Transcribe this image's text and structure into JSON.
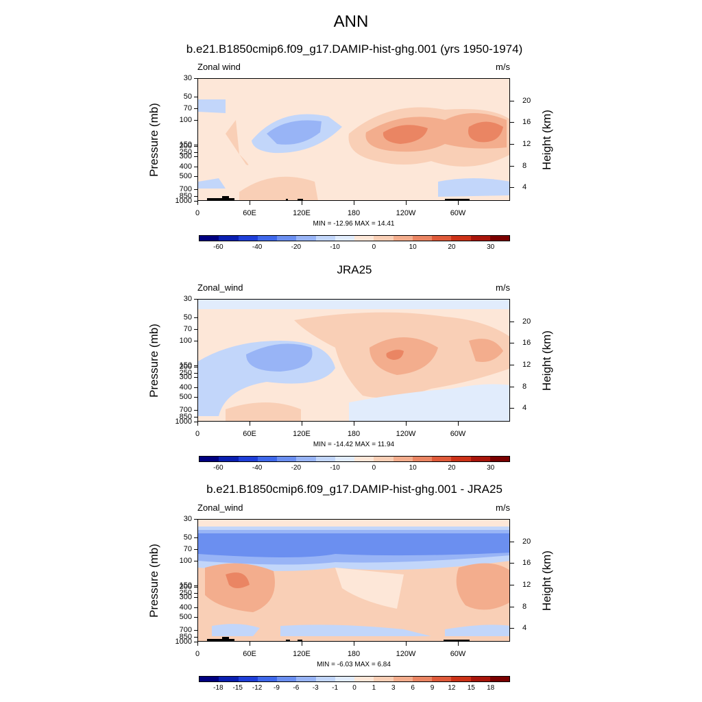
{
  "figure_title": "ANN",
  "panels": [
    {
      "title": "b.e21.B1850cmip6.f09_g17.DAMIP-hist-ghg.001 (yrs 1950-1974)",
      "variable": "Zonal wind",
      "units": "m/s",
      "stats": "MIN = -12.96  MAX =  14.41",
      "scale": "full"
    },
    {
      "title": "JRA25",
      "variable": "Zonal_wind",
      "units": "m/s",
      "stats": "MIN = -14.42  MAX =  11.94",
      "scale": "full"
    },
    {
      "title": "b.e21.B1850cmip6.f09_g17.DAMIP-hist-ghg.001 - JRA25",
      "variable": "Zonal_wind",
      "units": "m/s",
      "stats": "MIN = -6.03  MAX =  6.84",
      "scale": "diff"
    }
  ],
  "axes": {
    "ylabel": "Pressure (mb)",
    "y2label": "Height (km)",
    "pressure_ticks": [
      "30",
      "50",
      "70",
      "100",
      "150",
      "200",
      "250",
      "300",
      "400",
      "500",
      "700",
      "850",
      "1000"
    ],
    "height_ticks": [
      "20",
      "16",
      "12",
      "8",
      "4"
    ],
    "x_ticks": [
      "0",
      "60E",
      "120E",
      "180",
      "120W",
      "60W"
    ]
  },
  "colorbars": {
    "full_labels": [
      "-60",
      "-40",
      "-20",
      "-10",
      "0",
      "10",
      "20",
      "30"
    ],
    "diff_labels": [
      "-18",
      "-15",
      "-12",
      "-9",
      "-6",
      "-3",
      "-1",
      "0",
      "1",
      "3",
      "6",
      "9",
      "12",
      "15",
      "18"
    ],
    "colors": [
      "#00007f",
      "#0a1fb0",
      "#1f3fd8",
      "#3f68ea",
      "#6b8ff0",
      "#98b4f6",
      "#c2d6fa",
      "#e1ecfc",
      "#fde7d8",
      "#f9cfb6",
      "#f3ad8d",
      "#ea8563",
      "#df5a3a",
      "#cc3218",
      "#a8150b",
      "#7a0000"
    ]
  },
  "chart_data": [
    {
      "type": "heatmap",
      "title": "b.e21.B1850cmip6.f09_g17.DAMIP-hist-ghg.001 (yrs 1950-1974)",
      "xlabel": "",
      "ylabel": "Pressure (mb)",
      "y2label": "Height (km)",
      "units": "m/s",
      "x_range": [
        0,
        360
      ],
      "y_range_mb": [
        30,
        1000
      ],
      "min": -12.96,
      "max": 14.41,
      "features": [
        {
          "lon": 85,
          "p": 150,
          "value": -7,
          "desc": "easterly minimum"
        },
        {
          "lon": 212,
          "p": 150,
          "value": 14,
          "desc": "westerly jet core"
        },
        {
          "lon": 315,
          "p": 150,
          "value": 13,
          "desc": "westerly jet core"
        }
      ]
    },
    {
      "type": "heatmap",
      "title": "JRA25",
      "ylabel": "Pressure (mb)",
      "y2label": "Height (km)",
      "units": "m/s",
      "x_range": [
        0,
        360
      ],
      "y_range_mb": [
        30,
        1000
      ],
      "min": -14.42,
      "max": 11.94,
      "features": [
        {
          "lon": 75,
          "p": 150,
          "value": -8,
          "desc": "easterly minimum"
        },
        {
          "lon": 225,
          "p": 150,
          "value": 11,
          "desc": "westerly jet core"
        },
        {
          "lon": 305,
          "p": 150,
          "value": 6,
          "desc": "westerly maximum"
        }
      ]
    },
    {
      "type": "heatmap",
      "title": "b.e21.B1850cmip6.f09_g17.DAMIP-hist-ghg.001 - JRA25",
      "ylabel": "Pressure (mb)",
      "y2label": "Height (km)",
      "units": "m/s",
      "x_range": [
        0,
        360
      ],
      "y_range_mb": [
        30,
        1000
      ],
      "min": -6.03,
      "max": 6.84,
      "features": [
        {
          "lon": 180,
          "p": 60,
          "value": -5,
          "desc": "negative band 50-100 mb"
        },
        {
          "lon": 45,
          "p": 160,
          "value": 6,
          "desc": "positive maximum"
        }
      ]
    }
  ]
}
